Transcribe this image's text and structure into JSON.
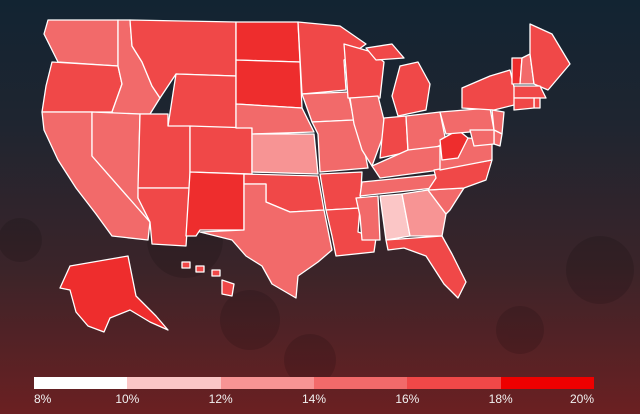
{
  "map": {
    "type": "choropleth",
    "region": "United States",
    "color_scale": {
      "stops": [
        "8%",
        "10%",
        "12%",
        "14%",
        "16%",
        "18%",
        "20%"
      ],
      "colors": [
        "#ffffff",
        "#fbc6c6",
        "#f79494",
        "#f26a6a",
        "#f04848",
        "#ee2d2d",
        "#ee0000"
      ]
    },
    "bins": [
      {
        "range": "8%–10%",
        "color": "#ffffff"
      },
      {
        "range": "10%–12%",
        "color": "#fbc6c6"
      },
      {
        "range": "12%–14%",
        "color": "#f79494"
      },
      {
        "range": "14%–16%",
        "color": "#f26a6a"
      },
      {
        "range": "16%–18%",
        "color": "#f04848"
      },
      {
        "range": "18%–20%",
        "color": "#ee0000"
      }
    ]
  },
  "states": [
    {
      "name": "WA",
      "level": 3
    },
    {
      "name": "OR",
      "level": 4
    },
    {
      "name": "CA",
      "level": 3
    },
    {
      "name": "ID",
      "level": 3
    },
    {
      "name": "NV",
      "level": 3
    },
    {
      "name": "MT",
      "level": 4
    },
    {
      "name": "WY",
      "level": 4
    },
    {
      "name": "UT",
      "level": 4
    },
    {
      "name": "AZ",
      "level": 4
    },
    {
      "name": "CO",
      "level": 4
    },
    {
      "name": "NM",
      "level": 5
    },
    {
      "name": "ND",
      "level": 5
    },
    {
      "name": "SD",
      "level": 5
    },
    {
      "name": "NE",
      "level": 3
    },
    {
      "name": "KS",
      "level": 2
    },
    {
      "name": "OK",
      "level": 4
    },
    {
      "name": "TX",
      "level": 3
    },
    {
      "name": "MN",
      "level": 4
    },
    {
      "name": "IA",
      "level": 3
    },
    {
      "name": "MO",
      "level": 3
    },
    {
      "name": "AR",
      "level": 4
    },
    {
      "name": "LA",
      "level": 4
    },
    {
      "name": "WI",
      "level": 4
    },
    {
      "name": "IL",
      "level": 3
    },
    {
      "name": "MI",
      "level": 4
    },
    {
      "name": "IN",
      "level": 4
    },
    {
      "name": "OH",
      "level": 3
    },
    {
      "name": "KY",
      "level": 3
    },
    {
      "name": "TN",
      "level": 3
    },
    {
      "name": "MS",
      "level": 3
    },
    {
      "name": "AL",
      "level": 1
    },
    {
      "name": "GA",
      "level": 2
    },
    {
      "name": "FL",
      "level": 4
    },
    {
      "name": "SC",
      "level": 3
    },
    {
      "name": "NC",
      "level": 4
    },
    {
      "name": "VA",
      "level": 3
    },
    {
      "name": "WV",
      "level": 5
    },
    {
      "name": "PA",
      "level": 3
    },
    {
      "name": "NY",
      "level": 4
    },
    {
      "name": "VT",
      "level": 5
    },
    {
      "name": "NH",
      "level": 3
    },
    {
      "name": "ME",
      "level": 4
    },
    {
      "name": "MA",
      "level": 4
    },
    {
      "name": "RI",
      "level": 4
    },
    {
      "name": "CT",
      "level": 4
    },
    {
      "name": "NJ",
      "level": 3
    },
    {
      "name": "DE",
      "level": 3
    },
    {
      "name": "MD",
      "level": 3
    },
    {
      "name": "AK",
      "level": 5
    },
    {
      "name": "HI",
      "level": 4
    }
  ]
}
